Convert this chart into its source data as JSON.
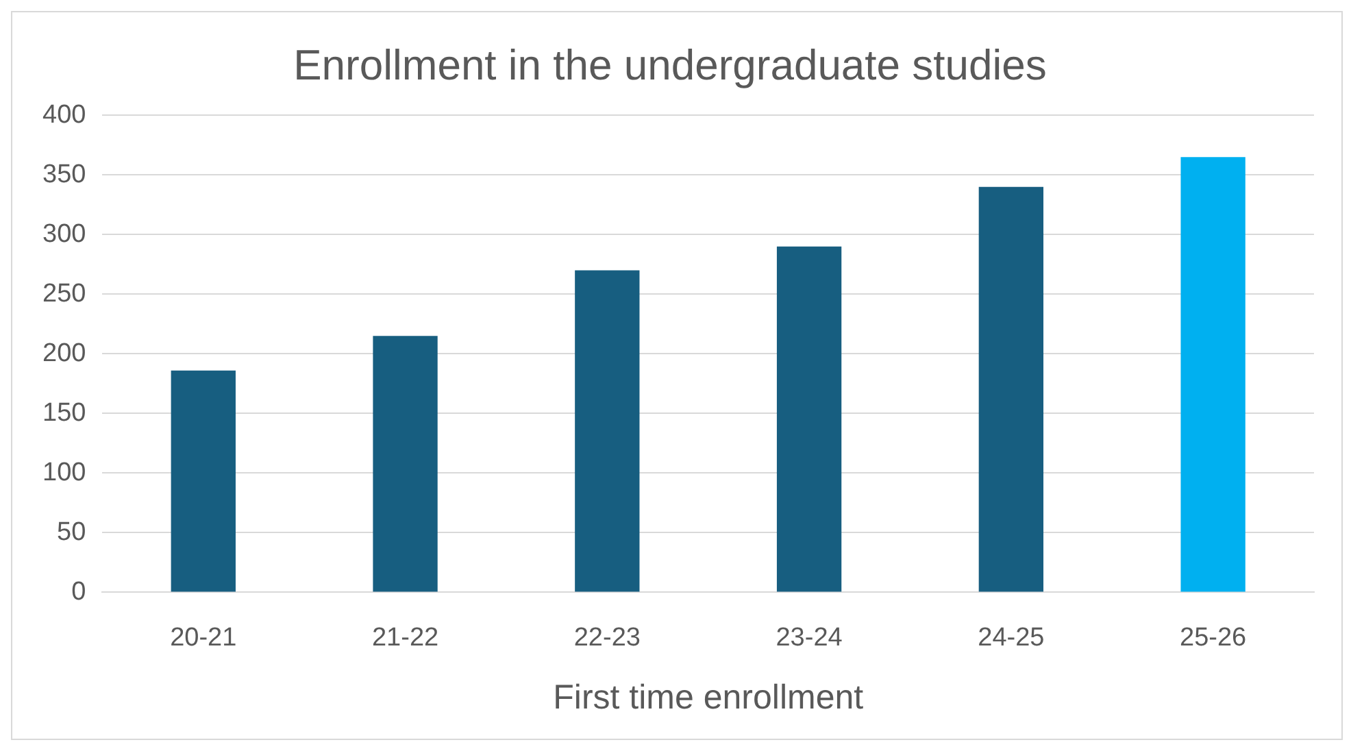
{
  "chart_data": {
    "type": "bar",
    "title": "Enrollment in the undergraduate studies",
    "xlabel": "First time enrollment",
    "categories": [
      "20-21",
      "21-22",
      "22-23",
      "23-24",
      "24-25",
      "25-26"
    ],
    "values": [
      186,
      215,
      270,
      290,
      340,
      365
    ],
    "colors": [
      "#175e80",
      "#175e80",
      "#175e80",
      "#175e80",
      "#175e80",
      "#00b0f0"
    ],
    "ylim": [
      0,
      400
    ],
    "yticks": [
      0,
      50,
      100,
      150,
      200,
      250,
      300,
      350,
      400
    ],
    "grid": "y",
    "legend": false
  }
}
